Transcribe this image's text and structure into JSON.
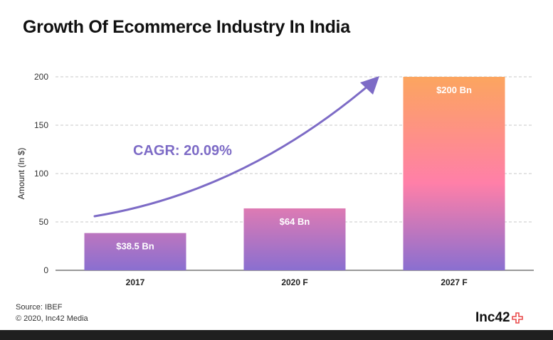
{
  "title": "Growth Of Ecommerce Industry In India",
  "chart_data": {
    "type": "bar",
    "categories": [
      "2017",
      "2020 F",
      "2027 F"
    ],
    "values": [
      38.5,
      64,
      200
    ],
    "data_labels": [
      "$38.5 Bn",
      "$64 Bn",
      "$200 Bn"
    ],
    "ylabel": "Amount (In $)",
    "xlabel": "",
    "ylim": [
      0,
      200
    ],
    "yticks": [
      0,
      50,
      100,
      150,
      200
    ],
    "grid": true,
    "annotation": "CAGR: 20.09%",
    "colors": {
      "bar_top": "#fca55f",
      "bar_mid": "#ff7fa8",
      "bar_bottom": "#8a6fd0",
      "arrow": "#7d6bc6",
      "annotation": "#7d6bc6",
      "grid": "#c9c9c9",
      "axis": "#333333"
    }
  },
  "footer": {
    "source": "Source: IBEF",
    "copyright": "© 2020, Inc42 Media",
    "brand": "Inc42",
    "brand_color": "#e94b4b"
  }
}
